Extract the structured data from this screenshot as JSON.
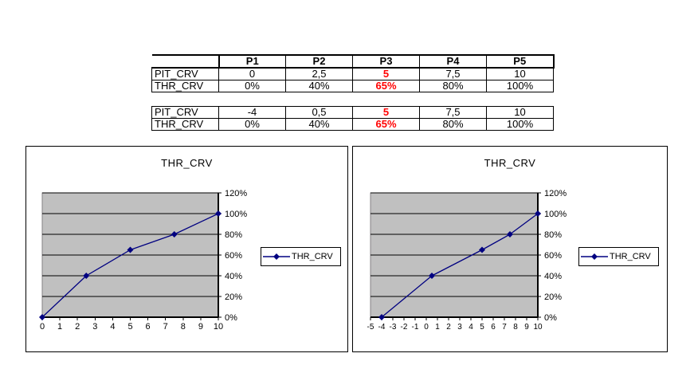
{
  "tables": {
    "t1": {
      "header": [
        "P1",
        "P2",
        "P3",
        "P4",
        "P5"
      ],
      "rows": [
        {
          "label": "PIT_CRV",
          "values": [
            "0",
            "2,5",
            "5",
            "7,5",
            "10"
          ]
        },
        {
          "label": "THR_CRV",
          "values": [
            "0%",
            "40%",
            "65%",
            "80%",
            "100%"
          ]
        }
      ],
      "highlighted_column": "P3"
    },
    "t2": {
      "rows": [
        {
          "label": "PIT_CRV",
          "values": [
            "-4",
            "0,5",
            "5",
            "7,5",
            "10"
          ]
        },
        {
          "label": "THR_CRV",
          "values": [
            "0%",
            "40%",
            "65%",
            "80%",
            "100%"
          ]
        }
      ],
      "highlighted_column": "P3"
    }
  },
  "colors": {
    "highlight_red": "#ff0000",
    "series_navy": "#000080",
    "plot_fill": "#c0c0c0",
    "plot_border": "#848284",
    "gridline": "#000000"
  },
  "chart_data": [
    {
      "type": "line",
      "title": "THR_CRV",
      "legend": [
        "THR_CRV"
      ],
      "legend_position": "right",
      "grid": true,
      "series": [
        {
          "name": "THR_CRV",
          "x": [
            0,
            2.5,
            5,
            7.5,
            10
          ],
          "y": [
            0,
            40,
            65,
            80,
            100
          ]
        }
      ],
      "xlim": [
        0,
        10
      ],
      "ylim": [
        0,
        120
      ],
      "xticks": [
        0,
        1,
        2,
        3,
        4,
        5,
        6,
        7,
        8,
        9,
        10
      ],
      "xtick_labels": [
        "0",
        "1",
        "2",
        "3",
        "4",
        "5",
        "6",
        "7",
        "8",
        "9",
        "10"
      ],
      "yticks": [
        0,
        20,
        40,
        60,
        80,
        100,
        120
      ],
      "ytick_labels": [
        "0%",
        "20%",
        "40%",
        "60%",
        "80%",
        "100%",
        "120%"
      ],
      "ylabel_format": "percent"
    },
    {
      "type": "line",
      "title": "THR_CRV",
      "legend": [
        "THR_CRV"
      ],
      "legend_position": "right",
      "grid": true,
      "series": [
        {
          "name": "THR_CRV",
          "x": [
            -4,
            0.5,
            5,
            7.5,
            10
          ],
          "y": [
            0,
            40,
            65,
            80,
            100
          ]
        }
      ],
      "xlim": [
        -5,
        10
      ],
      "ylim": [
        0,
        120
      ],
      "xticks": [
        -5,
        -4,
        -3,
        -2,
        -1,
        0,
        1,
        2,
        3,
        4,
        5,
        6,
        7,
        8,
        9,
        10
      ],
      "xtick_labels": [
        "-5",
        "-4",
        "-3",
        "-2",
        "-1",
        "0",
        "1",
        "2",
        "3",
        "4",
        "5",
        "6",
        "7",
        "8",
        "9",
        "10"
      ],
      "yticks": [
        0,
        20,
        40,
        60,
        80,
        100,
        120
      ],
      "ytick_labels": [
        "0%",
        "20%",
        "40%",
        "60%",
        "80%",
        "100%",
        "120%"
      ],
      "ylabel_format": "percent"
    }
  ]
}
